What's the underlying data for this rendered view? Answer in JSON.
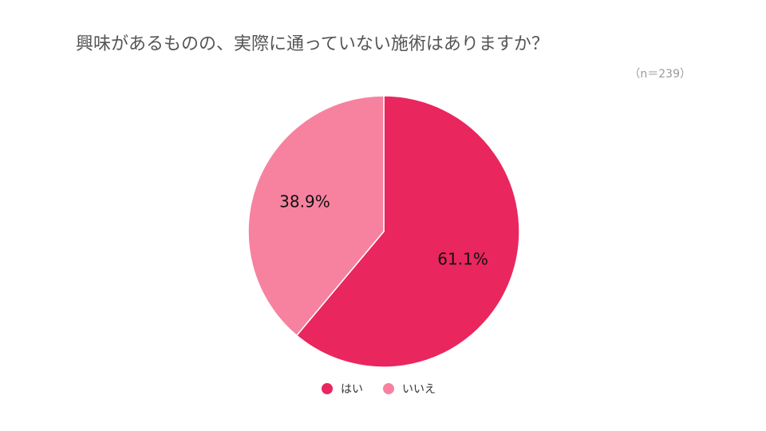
{
  "chart_data": {
    "type": "pie",
    "title": "興味があるものの、実際に通っていない施術はありますか？",
    "subtitle": "（n＝239）",
    "categories": [
      "はい",
      "いいえ"
    ],
    "values": [
      61.1,
      38.9
    ],
    "value_labels": [
      "61.1%",
      "38.9%"
    ],
    "colors": [
      "#e9265e",
      "#f7829f"
    ]
  }
}
